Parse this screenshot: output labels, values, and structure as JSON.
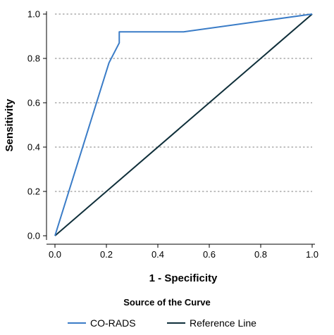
{
  "chart_data": {
    "type": "line",
    "title": "",
    "xlabel": "1 - Specificity",
    "ylabel": "Sensitivity",
    "xlim": [
      0,
      1
    ],
    "ylim": [
      0,
      1
    ],
    "x_ticks": [
      0.0,
      0.2,
      0.4,
      0.6,
      0.8,
      1.0
    ],
    "y_ticks": [
      0.0,
      0.2,
      0.4,
      0.6,
      0.8,
      1.0
    ],
    "x_tick_labels": [
      "0.0",
      "0.2",
      "0.4",
      "0.6",
      "0.8",
      "1.0"
    ],
    "y_tick_labels": [
      "0.0",
      "0.2",
      "0.4",
      "0.6",
      "0.8",
      "1.0"
    ],
    "grid": "horizontal dotted",
    "legend": {
      "title": "Source of the Curve",
      "placement": "bottom"
    },
    "series": [
      {
        "name": "CO-RADS",
        "color": "#3a7cc7",
        "x": [
          0.0,
          0.21,
          0.25,
          0.25,
          0.5,
          1.0
        ],
        "y": [
          0.0,
          0.78,
          0.87,
          0.92,
          0.92,
          1.0
        ]
      },
      {
        "name": "Reference Line",
        "color": "#0f2f3a",
        "x": [
          0.0,
          1.0
        ],
        "y": [
          0.0,
          1.0
        ]
      }
    ]
  }
}
